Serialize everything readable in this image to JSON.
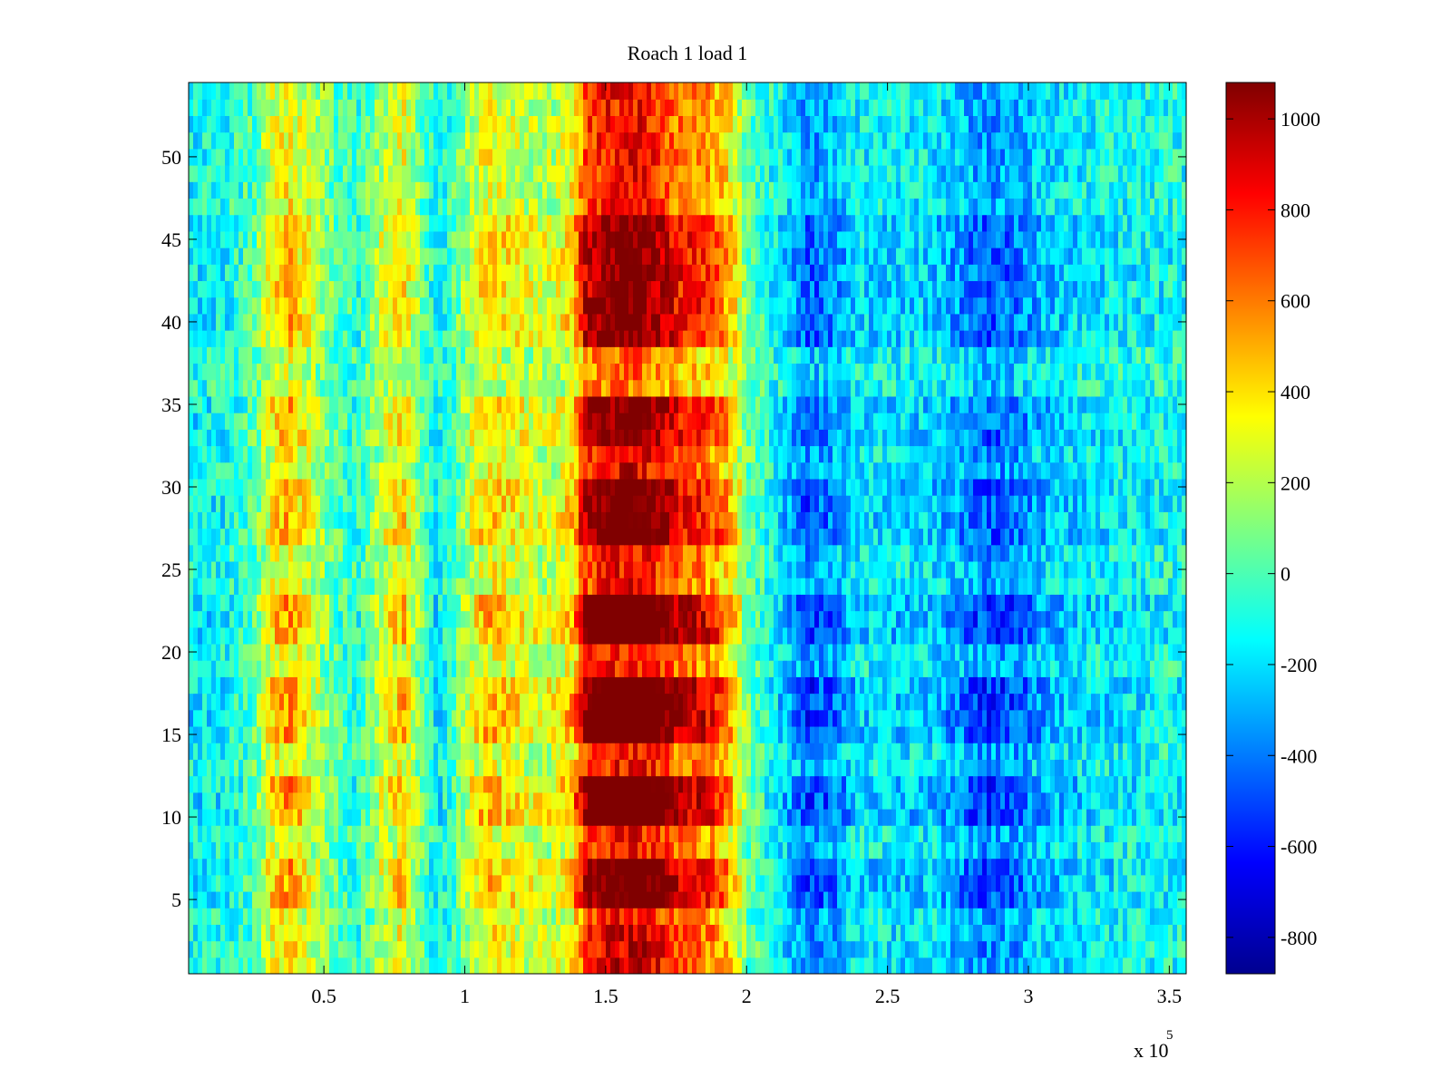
{
  "chart_data": {
    "type": "heatmap",
    "title": "Roach 1 load 1",
    "xlabel": "",
    "ylabel": "",
    "x_exponent_label": "x 10",
    "x_exponent_power": "5",
    "xlim": [
      0.02,
      3.56
    ],
    "ylim": [
      0.5,
      54.5
    ],
    "x_ticks": [
      0.5,
      1,
      1.5,
      2,
      2.5,
      3,
      3.5
    ],
    "x_tick_labels": [
      "0.5",
      "1",
      "1.5",
      "2",
      "2.5",
      "3",
      "3.5"
    ],
    "y_ticks": [
      5,
      10,
      15,
      20,
      25,
      30,
      35,
      40,
      45,
      50
    ],
    "y_tick_labels": [
      "5",
      "10",
      "15",
      "20",
      "25",
      "30",
      "35",
      "40",
      "45",
      "50"
    ],
    "rows": 54,
    "colormap": "jet",
    "clim": [
      -880,
      1080
    ],
    "colorbar": {
      "ticks": [
        -800,
        -600,
        -400,
        -200,
        0,
        200,
        400,
        600,
        800,
        1000
      ],
      "tick_labels": [
        "-800",
        "-600",
        "-400",
        "-200",
        "0",
        "200",
        "400",
        "600",
        "800",
        "1000"
      ]
    },
    "column_profile": [
      {
        "x": 0.05,
        "value": -150
      },
      {
        "x": 0.15,
        "value": -120
      },
      {
        "x": 0.25,
        "value": 0
      },
      {
        "x": 0.32,
        "value": 350
      },
      {
        "x": 0.38,
        "value": 450
      },
      {
        "x": 0.45,
        "value": 250
      },
      {
        "x": 0.55,
        "value": 0
      },
      {
        "x": 0.62,
        "value": -80
      },
      {
        "x": 0.7,
        "value": 200
      },
      {
        "x": 0.78,
        "value": 380
      },
      {
        "x": 0.85,
        "value": 50
      },
      {
        "x": 0.9,
        "value": -150
      },
      {
        "x": 0.95,
        "value": -50
      },
      {
        "x": 1.05,
        "value": 350
      },
      {
        "x": 1.1,
        "value": 400
      },
      {
        "x": 1.18,
        "value": 300
      },
      {
        "x": 1.25,
        "value": 250
      },
      {
        "x": 1.32,
        "value": 250
      },
      {
        "x": 1.38,
        "value": 400
      },
      {
        "x": 1.43,
        "value": 850
      },
      {
        "x": 1.5,
        "value": 1000
      },
      {
        "x": 1.6,
        "value": 1050
      },
      {
        "x": 1.68,
        "value": 950
      },
      {
        "x": 1.76,
        "value": 750
      },
      {
        "x": 1.84,
        "value": 700
      },
      {
        "x": 1.9,
        "value": 600
      },
      {
        "x": 1.95,
        "value": 400
      },
      {
        "x": 2.0,
        "value": 80
      },
      {
        "x": 2.08,
        "value": -100
      },
      {
        "x": 2.15,
        "value": -250
      },
      {
        "x": 2.22,
        "value": -420
      },
      {
        "x": 2.3,
        "value": -350
      },
      {
        "x": 2.4,
        "value": -180
      },
      {
        "x": 2.55,
        "value": -200
      },
      {
        "x": 2.65,
        "value": -200
      },
      {
        "x": 2.75,
        "value": -300
      },
      {
        "x": 2.85,
        "value": -420
      },
      {
        "x": 2.95,
        "value": -380
      },
      {
        "x": 3.05,
        "value": -250
      },
      {
        "x": 3.2,
        "value": -180
      },
      {
        "x": 3.35,
        "value": -150
      },
      {
        "x": 3.56,
        "value": -120
      }
    ],
    "row_amplitude": [
      {
        "y_from": 1,
        "y_to": 3,
        "amplitude": 0.9
      },
      {
        "y_from": 4,
        "y_to": 4,
        "amplitude": 0.8
      },
      {
        "y_from": 5,
        "y_to": 7,
        "amplitude": 1.2
      },
      {
        "y_from": 8,
        "y_to": 9,
        "amplitude": 0.8
      },
      {
        "y_from": 10,
        "y_to": 12,
        "amplitude": 1.3
      },
      {
        "y_from": 13,
        "y_to": 14,
        "amplitude": 0.8
      },
      {
        "y_from": 15,
        "y_to": 18,
        "amplitude": 1.3
      },
      {
        "y_from": 19,
        "y_to": 20,
        "amplitude": 0.8
      },
      {
        "y_from": 21,
        "y_to": 23,
        "amplitude": 1.3
      },
      {
        "y_from": 24,
        "y_to": 26,
        "amplitude": 0.8
      },
      {
        "y_from": 27,
        "y_to": 30,
        "amplitude": 1.15
      },
      {
        "y_from": 31,
        "y_to": 32,
        "amplitude": 0.85
      },
      {
        "y_from": 33,
        "y_to": 35,
        "amplitude": 1.1
      },
      {
        "y_from": 36,
        "y_to": 38,
        "amplitude": 0.6
      },
      {
        "y_from": 39,
        "y_to": 46,
        "amplitude": 1.1
      },
      {
        "y_from": 47,
        "y_to": 54,
        "amplitude": 0.8
      }
    ]
  }
}
